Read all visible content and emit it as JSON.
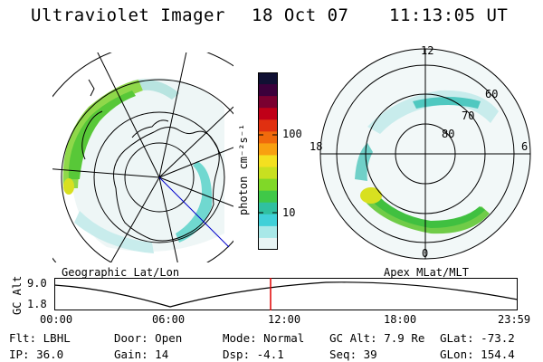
{
  "header": {
    "instrument": "Ultraviolet Imager",
    "date": "18 Oct 07",
    "time": "11:13:05 UT"
  },
  "colorbar": {
    "unit_label": "photon cm⁻²s⁻¹",
    "ticks": [
      "100",
      "10"
    ],
    "colors": [
      "#101033",
      "#3b003b",
      "#7a0030",
      "#c00018",
      "#e03010",
      "#f06a0c",
      "#f8a010",
      "#f4e020",
      "#c8e020",
      "#80d828",
      "#40c848",
      "#30c0a0",
      "#40d0d8",
      "#a8e8e8",
      "#e8f4f4"
    ]
  },
  "geo_panel": {
    "caption": "Geographic Lat/Lon"
  },
  "mlt_panel": {
    "caption": "Apex MLat/MLT",
    "hour_labels": [
      "12",
      "18",
      "6",
      "0"
    ],
    "lat_labels": [
      "60",
      "70",
      "80"
    ]
  },
  "timeline": {
    "label": "GC Alt",
    "y_ticks": [
      "9.0",
      "1.8"
    ],
    "x_ticks": [
      "00:00",
      "06:00",
      "12:00",
      "18:00",
      "23:59"
    ],
    "marker_color": "#e00000"
  },
  "footer": {
    "row1": [
      {
        "key": "Flt:",
        "val": "LBHL"
      },
      {
        "key": "Door:",
        "val": "Open"
      },
      {
        "key": "Mode:",
        "val": "Normal"
      },
      {
        "key": "GC Alt:",
        "val": "7.9 Re"
      },
      {
        "key": "GLat:",
        "val": "-73.2"
      }
    ],
    "row2": [
      {
        "key": "IP:",
        "val": "36.0"
      },
      {
        "key": "Gain:",
        "val": "14"
      },
      {
        "key": "Dsp:",
        "val": "-4.1"
      },
      {
        "key": "Seq:",
        "val": "39"
      },
      {
        "key": "GLon:",
        "val": "154.4"
      }
    ]
  }
}
